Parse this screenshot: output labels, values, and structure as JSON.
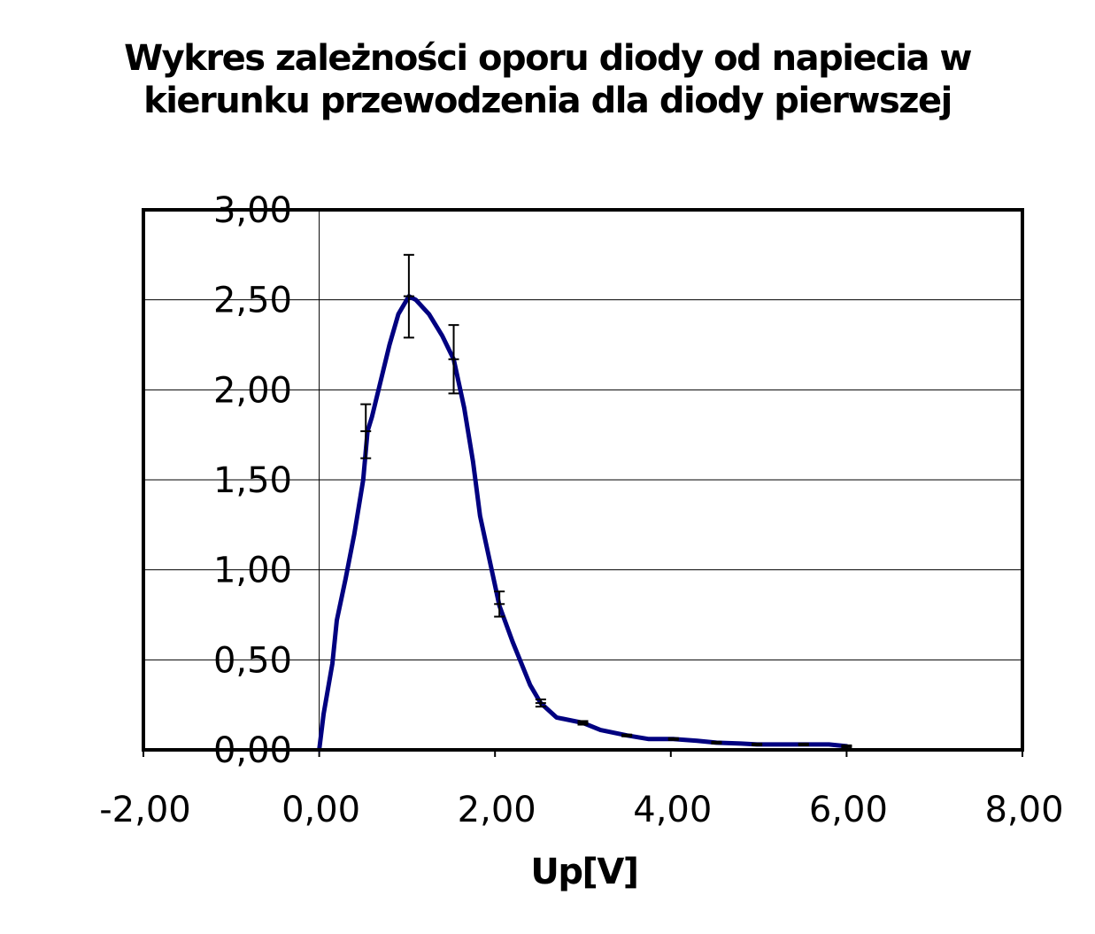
{
  "chart_data": {
    "type": "line",
    "title_line1": "Wykres zależności oporu diody od napiecia w",
    "title_line2": "kierunku przewodzenia dla diody pierwszej",
    "xlabel": "Up[V]",
    "ylabel": "",
    "xlim": [
      -2,
      8
    ],
    "ylim": [
      0,
      3
    ],
    "x_ticks": [
      "-2,00",
      "0,00",
      "2,00",
      "4,00",
      "6,00",
      "8,00"
    ],
    "y_ticks": [
      "0,00",
      "0,50",
      "1,00",
      "1,50",
      "2,00",
      "2,50",
      "3,00"
    ],
    "grid": "horizontal",
    "line_color": "#000080",
    "series": [
      {
        "x": [
          0.0,
          0.05,
          0.15,
          0.2,
          0.3,
          0.4,
          0.5,
          0.55,
          0.6,
          0.7,
          0.8,
          0.9,
          1.02,
          1.1,
          1.25,
          1.4,
          1.53,
          1.65,
          1.75,
          1.83,
          2.05,
          2.2,
          2.4,
          2.52,
          2.7,
          3.0,
          3.2,
          3.5,
          3.75,
          4.03,
          4.3,
          4.52,
          4.8,
          4.98,
          5.3,
          5.51,
          5.8,
          6.0
        ],
        "y": [
          0.0,
          0.2,
          0.48,
          0.72,
          0.95,
          1.2,
          1.5,
          1.77,
          1.85,
          2.05,
          2.25,
          2.42,
          2.52,
          2.5,
          2.42,
          2.3,
          2.17,
          1.9,
          1.6,
          1.3,
          0.8,
          0.6,
          0.36,
          0.26,
          0.18,
          0.15,
          0.11,
          0.08,
          0.06,
          0.06,
          0.05,
          0.04,
          0.035,
          0.03,
          0.03,
          0.03,
          0.03,
          0.02
        ]
      }
    ],
    "error_bars": [
      {
        "x": 0.53,
        "y": 1.77,
        "err": 0.15
      },
      {
        "x": 1.02,
        "y": 2.52,
        "err": 0.23
      },
      {
        "x": 1.53,
        "y": 2.17,
        "err": 0.19
      },
      {
        "x": 2.05,
        "y": 0.81,
        "err": 0.07
      },
      {
        "x": 2.52,
        "y": 0.26,
        "err": 0.02
      },
      {
        "x": 3.0,
        "y": 0.15,
        "err": 0.01
      },
      {
        "x": 3.5,
        "y": 0.08,
        "err": 0.005
      },
      {
        "x": 4.03,
        "y": 0.06,
        "err": 0.005
      },
      {
        "x": 4.52,
        "y": 0.04,
        "err": 0.005
      },
      {
        "x": 4.98,
        "y": 0.03,
        "err": 0.005
      },
      {
        "x": 5.51,
        "y": 0.03,
        "err": 0.005
      },
      {
        "x": 6.0,
        "y": 0.02,
        "err": 0.005
      }
    ]
  }
}
